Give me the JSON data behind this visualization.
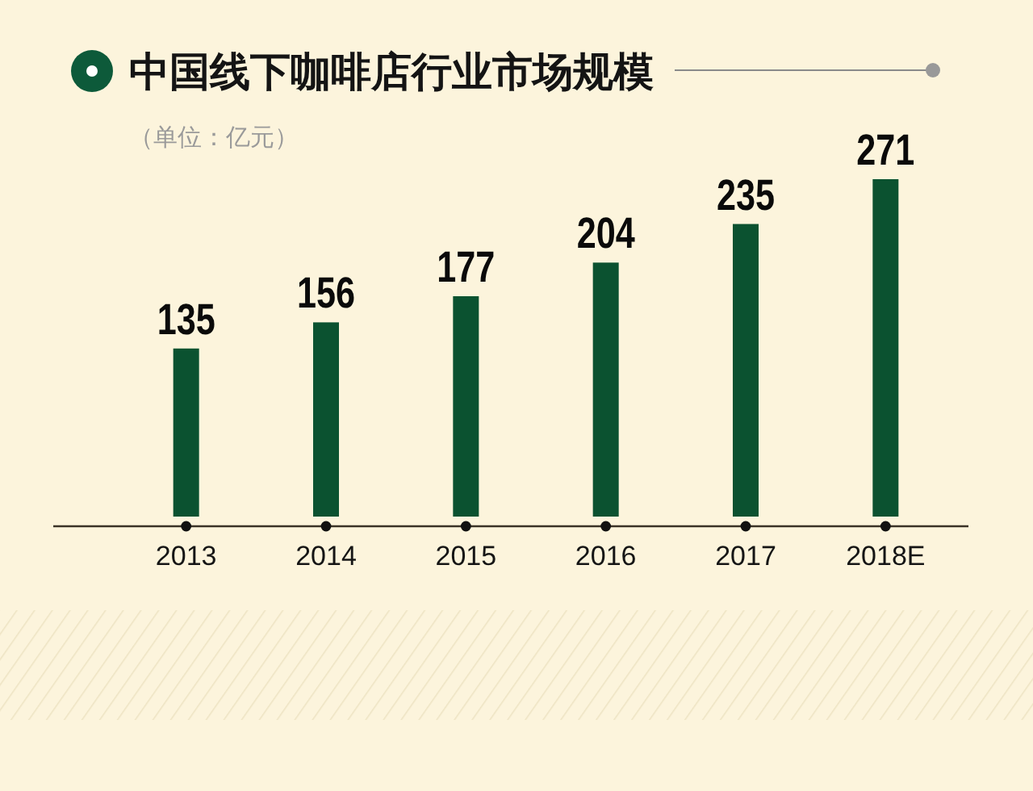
{
  "chart_data": {
    "type": "bar",
    "title": "中国线下咖啡店行业市场规模",
    "subtitle": "（单位：亿元）",
    "categories": [
      "2013",
      "2014",
      "2015",
      "2016",
      "2017",
      "2018E"
    ],
    "values": [
      135,
      156,
      177,
      204,
      235,
      271
    ],
    "color": "#0b5230",
    "data_labels": true
  }
}
